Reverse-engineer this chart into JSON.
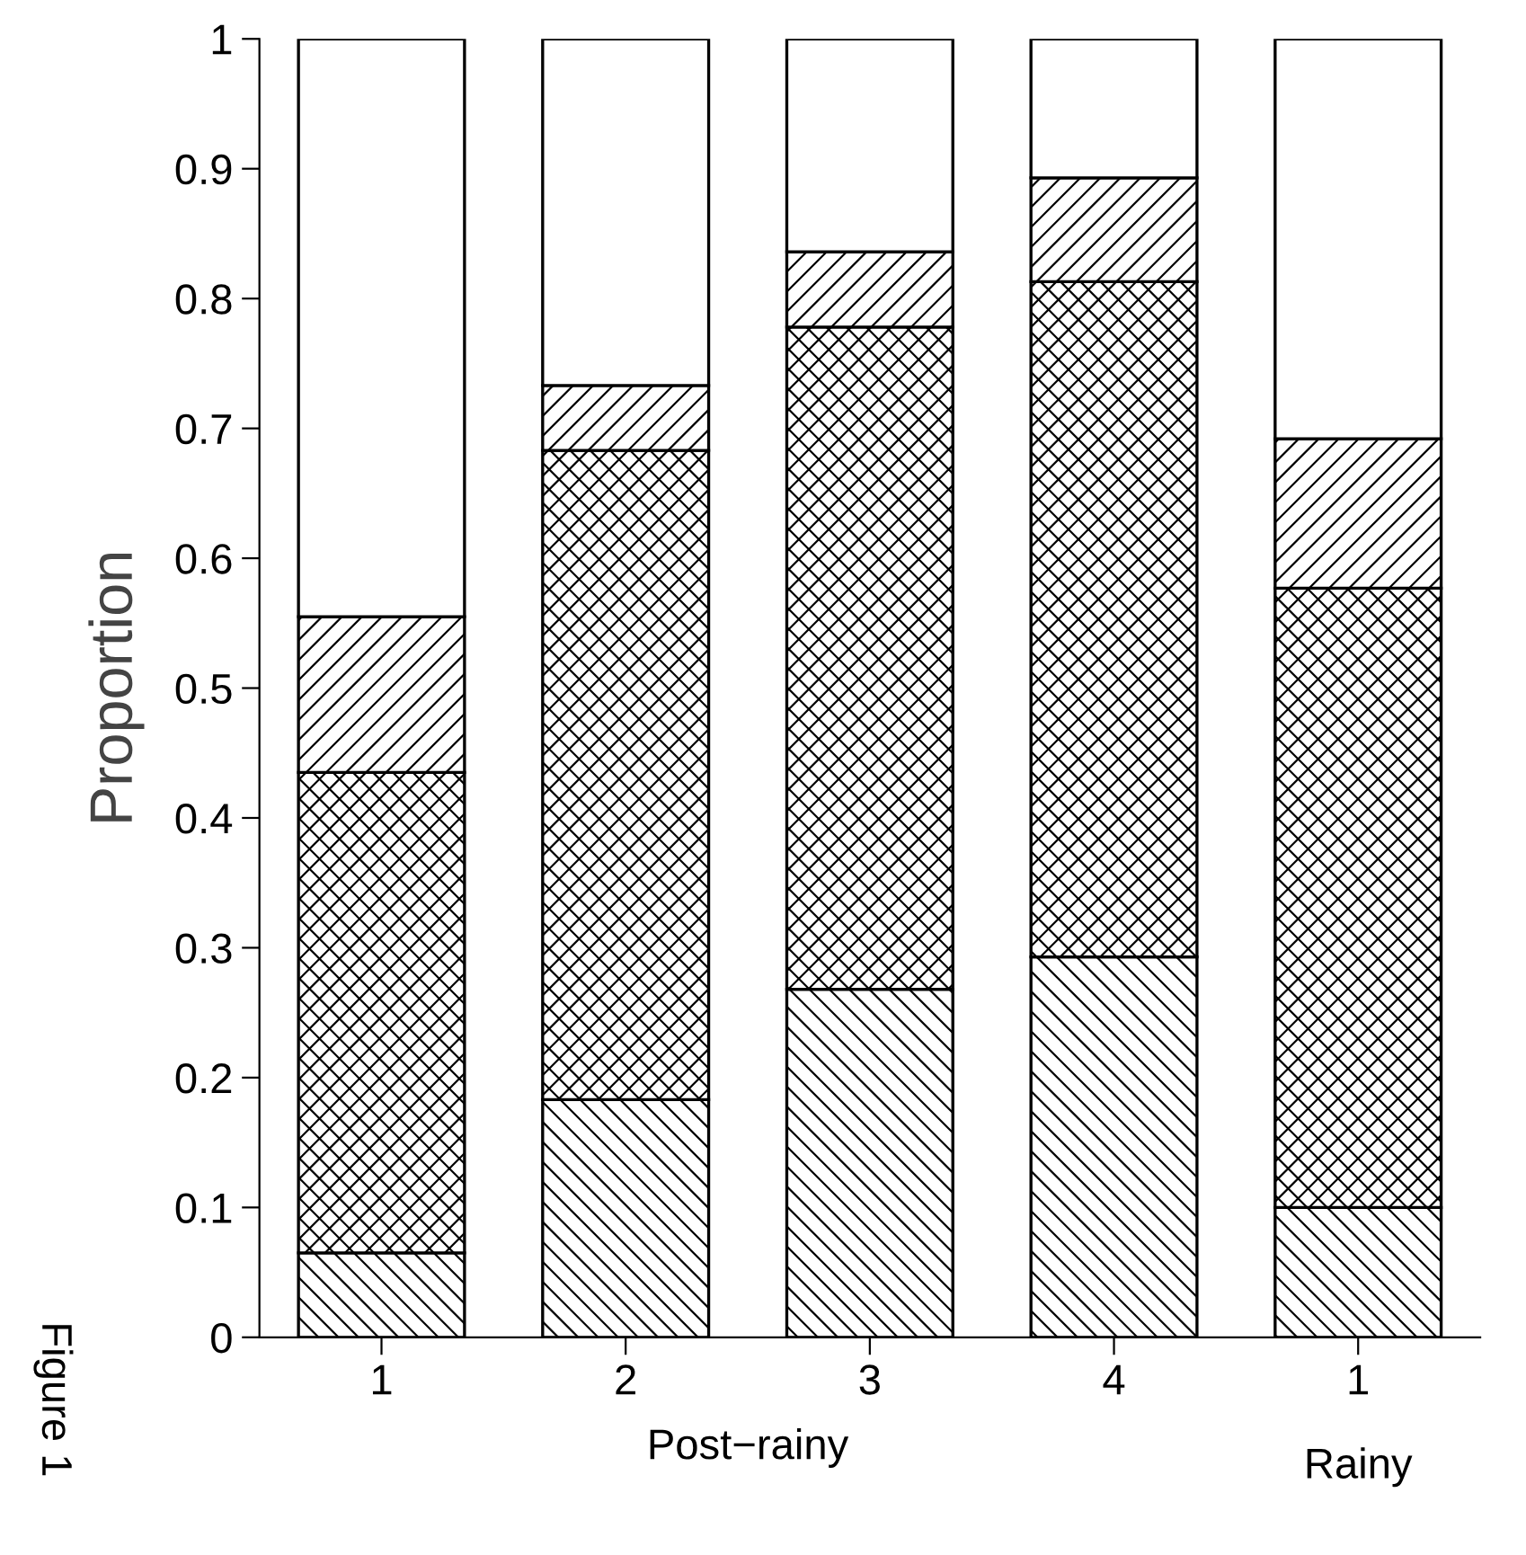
{
  "chart_data": {
    "type": "bar",
    "stacked": true,
    "ylabel": "Proportion",
    "xlabel": "Post−rainy",
    "categories": [
      "1",
      "2",
      "3",
      "4",
      "1"
    ],
    "series": [
      {
        "color": "#000000",
        "values": [
          0.065,
          0.183,
          0.268,
          0.293,
          0.1
        ]
      },
      {
        "color": "#000000",
        "values": [
          0.37,
          0.5,
          0.51,
          0.52,
          0.477
        ]
      },
      {
        "color": "#000000",
        "values": [
          0.12,
          0.05,
          0.058,
          0.08,
          0.115
        ]
      },
      {
        "color": "#ffffff",
        "values": [
          0.445,
          0.267,
          0.164,
          0.107,
          0.308
        ]
      }
    ],
    "ylim": [
      0,
      1
    ],
    "yticks": [
      0,
      0.1,
      0.2,
      0.3,
      0.4,
      0.5,
      0.6,
      0.7,
      0.8,
      0.9,
      1
    ],
    "annotations": [
      "Rainy",
      "Figure 1"
    ],
    "grid": false,
    "legend": false
  }
}
